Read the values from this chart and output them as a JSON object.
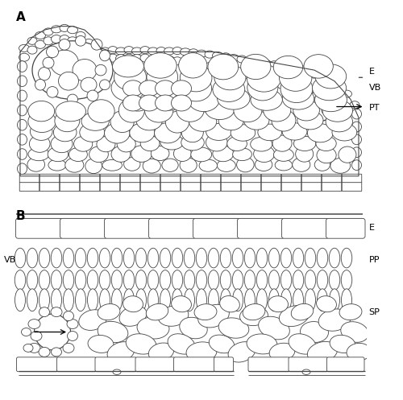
{
  "fig_width": 5.0,
  "fig_height": 4.97,
  "bg_color": "#ffffff",
  "line_color": "#444444",
  "line_width": 0.6,
  "label_A": "A",
  "label_B": "B",
  "labels": {
    "E_top": "E",
    "VB_top": "VB",
    "PT": "PT",
    "E_bot": "E",
    "PP": "PP",
    "VB_bot": "VB",
    "SP": "SP"
  }
}
